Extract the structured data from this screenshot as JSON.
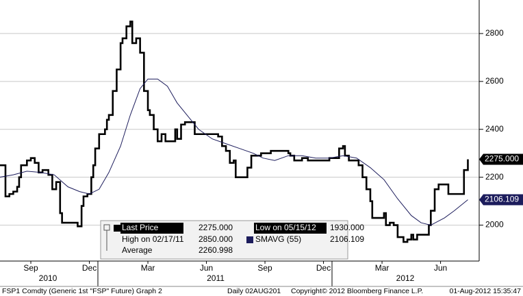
{
  "chart_data": {
    "type": "line",
    "ylim": [
      1850,
      2940
    ],
    "yticks": [
      2000,
      2200,
      2400,
      2600,
      2800
    ],
    "xlim": [
      -1.58,
      22.98
    ],
    "xticks": [
      {
        "value": 0,
        "label": "Sep"
      },
      {
        "value": 3,
        "label": "Dec"
      },
      {
        "value": 6,
        "label": "Mar"
      },
      {
        "value": 9,
        "label": "Jun"
      },
      {
        "value": 12,
        "label": "Sep"
      },
      {
        "value": 15,
        "label": "Dec"
      },
      {
        "value": 18,
        "label": "Mar"
      },
      {
        "value": 21,
        "label": "Jun"
      }
    ],
    "year_labels": [
      "2010",
      "2011",
      "2012"
    ],
    "grid": true,
    "series": [
      {
        "name": "Last Price",
        "color": "#000000",
        "step": true,
        "legend_value": "2275.000",
        "x": [
          -1.6,
          -1.3,
          -1.3,
          -1.1,
          -0.9,
          -0.7,
          -0.6,
          -0.5,
          -0.2,
          0,
          0.2,
          0.4,
          0.6,
          0.9,
          1.1,
          1.3,
          1.5,
          1.6,
          1.9,
          2.3,
          2.4,
          2.6,
          2.7,
          2.9,
          3.1,
          3.2,
          3.3,
          3.5,
          3.8,
          3.9,
          4.0,
          4.2,
          4.4,
          4.6,
          4.7,
          4.9,
          5.1,
          5.2,
          5.4,
          5.6,
          5.8,
          6.0,
          6.1,
          6.3,
          6.5,
          6.7,
          6.9,
          7.2,
          7.4,
          7.5,
          7.7,
          7.9,
          8.3,
          8.4,
          8.9,
          9.5,
          9.6,
          9.8,
          10.0,
          10.2,
          10.4,
          10.5,
          10.7,
          11.1,
          11.1,
          11.3,
          11.8,
          12.3,
          12.8,
          13.2,
          13.3,
          13.5,
          13.9,
          14.2,
          14.6,
          14.9,
          15.3,
          15.6,
          15.8,
          16.0,
          16.1,
          16.3,
          16.7,
          16.8,
          17.0,
          17.2,
          17.4,
          17.5,
          17.9,
          18.1,
          18.2,
          18.4,
          18.6,
          18.8,
          18.9,
          19.1,
          19.3,
          19.5,
          19.6,
          19.8,
          20.1,
          20.4,
          20.5,
          20.7,
          20.9,
          21.2,
          21.4,
          21.6,
          21.9,
          22.1,
          22.2,
          22.4
        ],
        "values": [
          2250,
          2250,
          2120,
          2130,
          2140,
          2160,
          2200,
          2250,
          2270,
          2280,
          2260,
          2220,
          2230,
          2210,
          2150,
          2180,
          2050,
          2010,
          2010,
          2010,
          1995,
          2080,
          2120,
          2130,
          2200,
          2250,
          2320,
          2380,
          2400,
          2440,
          2460,
          2560,
          2650,
          2760,
          2780,
          2830,
          2850,
          2760,
          2780,
          2720,
          2560,
          2480,
          2460,
          2400,
          2350,
          2380,
          2350,
          2350,
          2400,
          2360,
          2420,
          2430,
          2430,
          2380,
          2380,
          2380,
          2370,
          2330,
          2310,
          2260,
          2270,
          2200,
          2200,
          2200,
          2240,
          2290,
          2300,
          2310,
          2310,
          2300,
          2290,
          2270,
          2280,
          2270,
          2270,
          2270,
          2280,
          2280,
          2320,
          2330,
          2290,
          2270,
          2270,
          2250,
          2200,
          2150,
          2100,
          2030,
          2030,
          2050,
          2000,
          2010,
          2000,
          1950,
          1950,
          1930,
          1940,
          1960,
          1940,
          1960,
          1960,
          2000,
          2060,
          2150,
          2170,
          2170,
          2130,
          2130,
          2130,
          2130,
          2230,
          2275
        ]
      },
      {
        "name": "SMAVG (55)",
        "color": "#1c1c5c",
        "step": false,
        "legend_value": "2106.109",
        "x": [
          -1.6,
          -0.9,
          -0.2,
          0.5,
          1.2,
          1.9,
          2.5,
          3.0,
          3.5,
          4.0,
          4.6,
          5.1,
          5.6,
          6.0,
          6.5,
          7.0,
          7.5,
          8.1,
          8.6,
          9.3,
          10.0,
          10.7,
          11.4,
          11.9,
          12.5,
          13.2,
          13.9,
          14.6,
          15.3,
          16.0,
          16.7,
          17.4,
          18.1,
          18.8,
          19.5,
          20.0,
          20.5,
          21.2,
          21.7,
          22.4
        ],
        "values": [
          2200,
          2210,
          2225,
          2220,
          2210,
          2160,
          2140,
          2130,
          2150,
          2220,
          2330,
          2460,
          2570,
          2610,
          2610,
          2580,
          2510,
          2450,
          2400,
          2360,
          2340,
          2320,
          2300,
          2280,
          2270,
          2290,
          2290,
          2280,
          2280,
          2290,
          2280,
          2240,
          2190,
          2110,
          2040,
          2010,
          2000,
          2030,
          2060,
          2106
        ]
      }
    ],
    "legend_stats": [
      {
        "label": "High on 02/17/11",
        "text": "2850.000"
      },
      {
        "label": "Average",
        "text": "2260.998"
      },
      {
        "label": "Low on 05/15/12",
        "text": "1930.000"
      }
    ]
  },
  "footer": {
    "left": "FSP1 Comdty (Generic 1st \"FSP\" Future) Graph 2",
    "mid": "Daily 02AUG201",
    "copyright": "Copyright© 2012 Bloomberg Finance L.P.",
    "stamp": "01-Aug-2012 15:35:47"
  }
}
